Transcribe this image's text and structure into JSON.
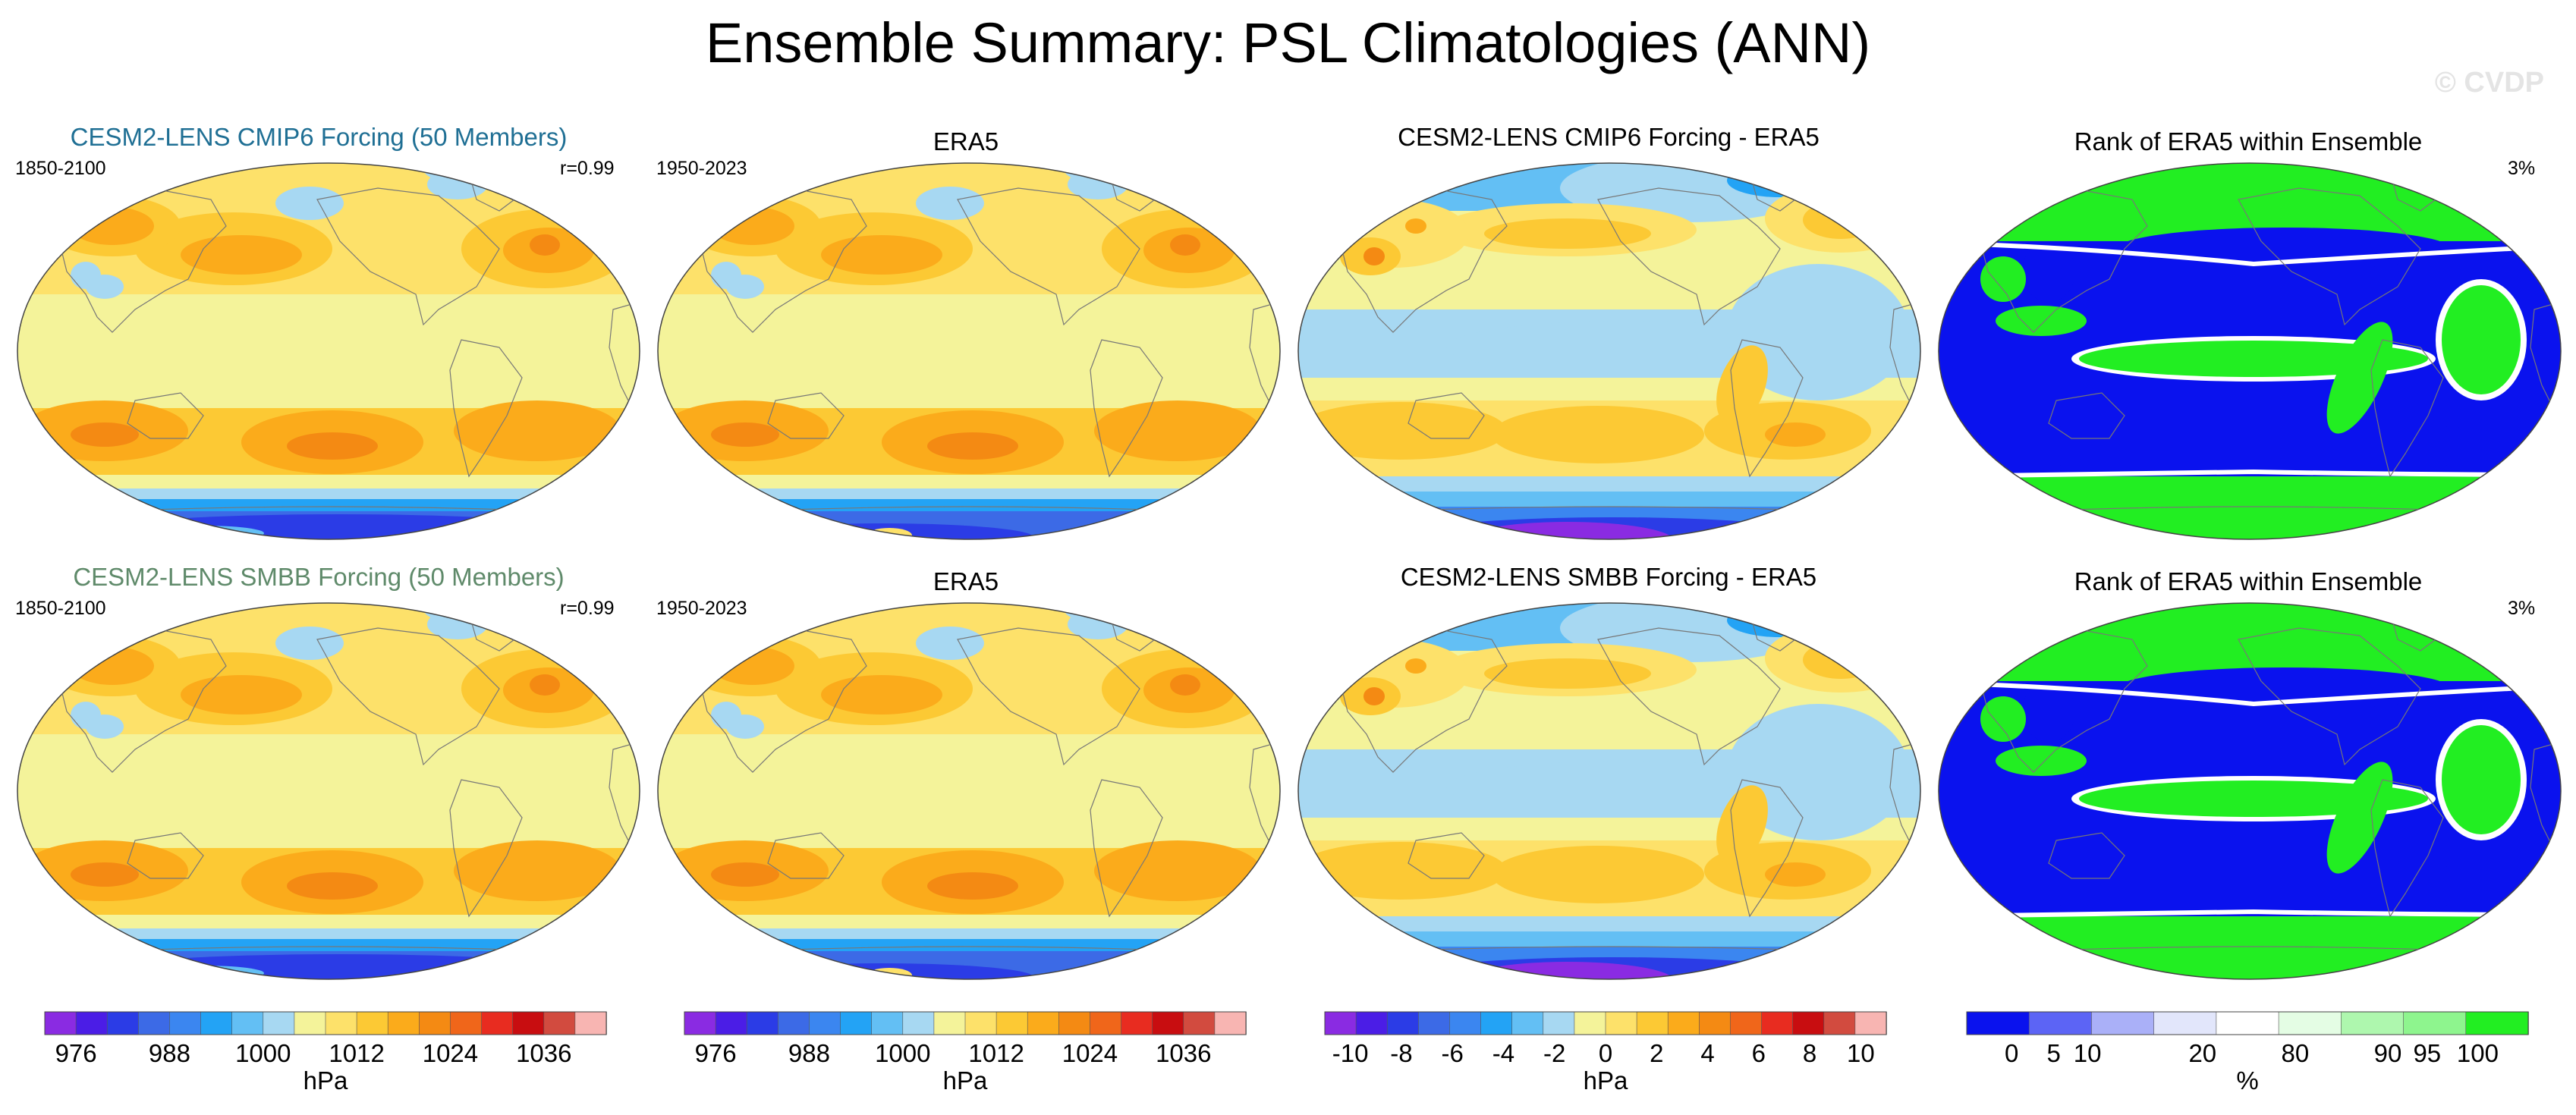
{
  "title": "Ensemble Summary: PSL Climatologies (ANN)",
  "watermark": "© CVDP",
  "rows": [
    {
      "panels": [
        {
          "title": "CESM2-LENS CMIP6 Forcing (50 Members)",
          "title_color": "#1f6f94",
          "period": "1850-2100",
          "stat": "r=0.99",
          "type": "psl"
        },
        {
          "title": "ERA5",
          "title_color": "#000000",
          "period": "1950-2023",
          "stat": "",
          "type": "psl"
        },
        {
          "title": "CESM2-LENS CMIP6 Forcing - ERA5",
          "title_color": "#000000",
          "period": "",
          "stat": "",
          "type": "diff"
        },
        {
          "title": "Rank of ERA5 within Ensemble",
          "title_color": "#000000",
          "period": "",
          "stat": "3%",
          "type": "rank"
        }
      ]
    },
    {
      "panels": [
        {
          "title": "CESM2-LENS SMBB Forcing (50 Members)",
          "title_color": "#5f8a6a",
          "period": "1850-2100",
          "stat": "r=0.99",
          "type": "psl"
        },
        {
          "title": "ERA5",
          "title_color": "#000000",
          "period": "1950-2023",
          "stat": "",
          "type": "psl"
        },
        {
          "title": "CESM2-LENS SMBB Forcing - ERA5",
          "title_color": "#000000",
          "period": "",
          "stat": "",
          "type": "diff"
        },
        {
          "title": "Rank of ERA5 within Ensemble",
          "title_color": "#000000",
          "period": "",
          "stat": "3%",
          "type": "rank"
        }
      ]
    }
  ],
  "colors": {
    "psl_palette": [
      "#8a2be2",
      "#4b1de6",
      "#2b3ce6",
      "#3c6ae6",
      "#3b86f0",
      "#23a3f5",
      "#63bff4",
      "#a7d8f2",
      "#f4f39a",
      "#fde16a",
      "#fcc934",
      "#fbab1b",
      "#f48a13",
      "#f0661a",
      "#e82c20",
      "#c80d10",
      "#d24b3f",
      "#f8b5b2"
    ],
    "diff_palette": [
      "#8a2be2",
      "#4b1de6",
      "#2b3ce6",
      "#3c6ae6",
      "#3b86f0",
      "#23a3f5",
      "#63bff4",
      "#a7d8f2",
      "#f4f39a",
      "#fde16a",
      "#fcc934",
      "#fbab1b",
      "#f48a13",
      "#f0661a",
      "#e82c20",
      "#c80d10",
      "#d24b3f",
      "#f8b5b2"
    ],
    "rank_palette": [
      "#0a12ee",
      "#5c64f5",
      "#aab0f8",
      "#e2e6fb",
      "#ffffff",
      "#e4fde4",
      "#aef7ae",
      "#8ef58e",
      "#22ee22"
    ],
    "coast": "#777777"
  },
  "chart_data": [
    {
      "type": "heatmap",
      "name": "PSL climatology colorbar",
      "ticks": [
        "976",
        "988",
        "1000",
        "1012",
        "1024",
        "1036"
      ],
      "tick_levels": [
        976,
        988,
        1000,
        1012,
        1024,
        1036
      ],
      "levels": [
        972,
        976,
        980,
        984,
        988,
        992,
        996,
        1000,
        1004,
        1008,
        1012,
        1016,
        1020,
        1024,
        1028,
        1032,
        1036,
        1040,
        1044
      ],
      "units": "hPa"
    },
    {
      "type": "heatmap",
      "name": "PSL difference colorbar",
      "ticks": [
        "-10",
        "-8",
        "-6",
        "-4",
        "-2",
        "0",
        "2",
        "4",
        "6",
        "8",
        "10"
      ],
      "tick_levels": [
        -10,
        -8,
        -6,
        -4,
        -2,
        0,
        2,
        4,
        6,
        8,
        10
      ],
      "levels": [
        -11,
        -10,
        -9,
        -8,
        -7,
        -6,
        -5,
        -4,
        -3,
        -2,
        -1,
        0,
        1,
        2,
        3,
        4,
        5,
        6,
        7,
        8,
        9,
        10,
        11
      ],
      "units": "hPa"
    },
    {
      "type": "heatmap",
      "name": "Rank colorbar",
      "ticks": [
        "0",
        "5",
        "10",
        "20",
        "80",
        "90",
        "95",
        "100"
      ],
      "levels": [
        0,
        5,
        10,
        20,
        80,
        90,
        95,
        100
      ],
      "units": "%"
    }
  ]
}
